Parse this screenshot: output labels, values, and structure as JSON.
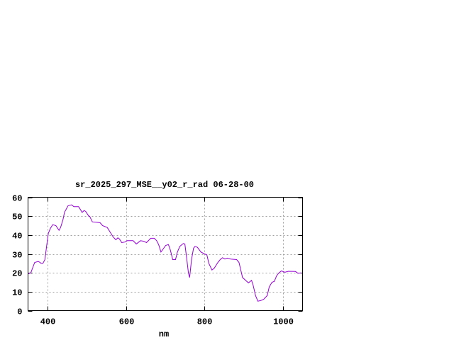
{
  "chart_data": {
    "type": "line",
    "title": "sr_2025_297_MSE__y02_r_rad 06-28-00",
    "xlabel": "nm",
    "ylabel": "",
    "xlim": [
      350,
      1050
    ],
    "ylim": [
      0,
      60
    ],
    "xticks": [
      400,
      600,
      800,
      1000
    ],
    "yticks": [
      0,
      10,
      20,
      30,
      40,
      50,
      60
    ],
    "grid": true,
    "line_color": "#9400d3",
    "grid_color": "#a0a0a0",
    "series": [
      {
        "x": [
          350,
          357,
          367,
          376,
          381,
          383,
          388,
          393,
          398,
          402,
          407,
          413,
          421,
          429,
          433,
          439,
          443,
          452,
          461,
          467,
          479,
          488,
          493,
          497,
          505,
          507,
          514,
          525,
          534,
          540,
          552,
          558,
          567,
          574,
          579,
          583,
          589,
          597,
          603,
          618,
          626,
          637,
          645,
          652,
          663,
          672,
          678,
          683,
          689,
          701,
          708,
          713,
          719,
          726,
          731,
          737,
          746,
          750,
          755,
          759,
          762,
          767,
          772,
          776,
          782,
          791,
          800,
          806,
          811,
          819,
          825,
          834,
          840,
          846,
          852,
          858,
          867,
          882,
          888,
          892,
          897,
          906,
          912,
          920,
          924,
          930,
          936,
          943,
          951,
          960,
          965,
          972,
          978,
          984,
          990,
          996,
          1005,
          1014,
          1032,
          1038,
          1047
        ],
        "y": [
          19.5,
          20,
          25.5,
          26,
          25.5,
          25,
          25,
          27,
          35,
          41,
          43.5,
          45.5,
          45,
          42.5,
          44,
          48,
          52,
          55.5,
          56,
          55,
          55,
          52,
          53,
          52.5,
          50,
          50,
          47,
          46.8,
          46.5,
          45,
          44,
          42,
          39,
          37.5,
          38.5,
          38,
          36,
          36.3,
          37,
          37,
          35.3,
          37,
          36.7,
          36,
          38.3,
          38.3,
          37,
          35,
          31,
          34.5,
          35,
          32,
          27,
          27,
          31,
          34,
          35.5,
          35.3,
          27,
          20,
          17.5,
          27,
          33,
          34,
          33.5,
          31,
          30,
          29.5,
          25,
          21.5,
          22.5,
          25.5,
          27,
          28,
          27.3,
          27.8,
          27.3,
          27,
          25.5,
          22,
          17.5,
          15.8,
          14.7,
          16,
          13.5,
          8,
          5,
          5.3,
          6,
          8,
          12.5,
          15,
          15.5,
          18.5,
          20,
          21,
          20.3,
          20.8,
          20.7,
          19.8,
          20
        ]
      }
    ]
  }
}
